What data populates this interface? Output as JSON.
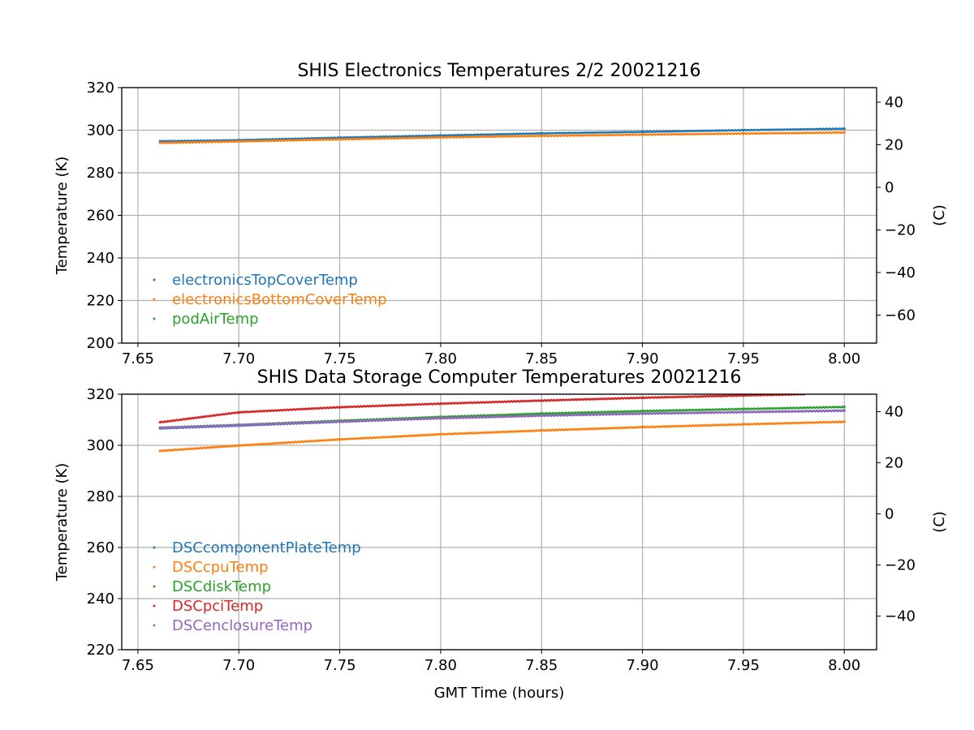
{
  "chart_data": [
    {
      "type": "scatter",
      "title": "SHIS Electronics Temperatures 2/2 20021216",
      "xlabel": "",
      "ylabel": "Temperature (K)",
      "ylabel_right": "(C)",
      "xlim": [
        7.642,
        8.016
      ],
      "ylim": [
        200,
        320
      ],
      "ylim_right_C": [
        -73.15,
        46.85
      ],
      "xticks": [
        7.65,
        7.7,
        7.75,
        7.8,
        7.85,
        7.9,
        7.95,
        8.0
      ],
      "xtick_labels": [
        "7.65",
        "7.70",
        "7.75",
        "7.80",
        "7.85",
        "7.90",
        "7.95",
        "8.00"
      ],
      "yticks": [
        200,
        220,
        240,
        260,
        280,
        300,
        320
      ],
      "ytick_labels": [
        "200",
        "220",
        "240",
        "260",
        "280",
        "300",
        "320"
      ],
      "yticks_right": [
        -60,
        -40,
        -20,
        0,
        20,
        40
      ],
      "ytick_labels_right": [
        "−60",
        "−40",
        "−20",
        "0",
        "20",
        "40"
      ],
      "grid": true,
      "legend": "lower-left",
      "series": [
        {
          "name": "electronicsTopCoverTemp",
          "color": "#1f77b4",
          "x": [
            7.661,
            7.7,
            7.75,
            7.8,
            7.85,
            7.9,
            7.95,
            8.0
          ],
          "y": [
            294.8,
            295.3,
            296.5,
            297.5,
            298.5,
            299.2,
            300.0,
            300.7
          ]
        },
        {
          "name": "electronicsBottomCoverTemp",
          "color": "#ff7f0e",
          "x": [
            7.661,
            7.7,
            7.75,
            7.8,
            7.85,
            7.9,
            7.95,
            8.0
          ],
          "y": [
            294.0,
            294.7,
            295.7,
            296.6,
            297.3,
            297.9,
            298.4,
            298.9
          ]
        },
        {
          "name": "podAirTemp",
          "color": "#2ca02c",
          "x": [],
          "y": []
        }
      ]
    },
    {
      "type": "scatter",
      "title": "SHIS Data Storage Computer Temperatures 20021216",
      "xlabel": "GMT Time (hours)",
      "ylabel": "Temperature (K)",
      "ylabel_right": "(C)",
      "xlim": [
        7.642,
        8.016
      ],
      "ylim": [
        220,
        320
      ],
      "ylim_right_C": [
        -53.15,
        46.85
      ],
      "xticks": [
        7.65,
        7.7,
        7.75,
        7.8,
        7.85,
        7.9,
        7.95,
        8.0
      ],
      "xtick_labels": [
        "7.65",
        "7.70",
        "7.75",
        "7.80",
        "7.85",
        "7.90",
        "7.95",
        "8.00"
      ],
      "yticks": [
        220,
        240,
        260,
        280,
        300,
        320
      ],
      "ytick_labels": [
        "220",
        "240",
        "260",
        "280",
        "300",
        "320"
      ],
      "yticks_right": [
        -40,
        -20,
        0,
        20,
        40
      ],
      "ytick_labels_right": [
        "−40",
        "−20",
        "0",
        "20",
        "40"
      ],
      "grid": true,
      "legend": "lower-left",
      "series": [
        {
          "name": "DSCcomponentPlateTemp",
          "color": "#1f77b4",
          "x": [
            7.661,
            7.7,
            7.75,
            7.8,
            7.85,
            7.9,
            7.95,
            8.0
          ],
          "y": [
            306.6,
            307.7,
            309.2,
            310.6,
            311.6,
            312.4,
            313.0,
            313.6
          ]
        },
        {
          "name": "DSCcpuTemp",
          "color": "#ff7f0e",
          "x": [
            7.661,
            7.7,
            7.75,
            7.8,
            7.85,
            7.9,
            7.95,
            8.0
          ],
          "y": [
            297.8,
            299.9,
            302.3,
            304.3,
            305.8,
            307.1,
            308.2,
            309.2
          ]
        },
        {
          "name": "DSCdiskTemp",
          "color": "#2ca02c",
          "x": [
            7.661,
            7.7,
            7.75,
            7.8,
            7.85,
            7.9,
            7.95,
            8.0
          ],
          "y": [
            306.9,
            308.0,
            309.6,
            311.1,
            312.4,
            313.4,
            314.2,
            315.0
          ]
        },
        {
          "name": "DSCpciTemp",
          "color": "#d62728",
          "x": [
            7.661,
            7.7,
            7.75,
            7.8,
            7.85,
            7.9,
            7.95,
            7.98
          ],
          "y": [
            309.0,
            312.9,
            314.9,
            316.3,
            317.5,
            318.6,
            319.5,
            320.0
          ]
        },
        {
          "name": "DSCenclosureTemp",
          "color": "#9467bd",
          "x": [
            7.661,
            7.7,
            7.75,
            7.8,
            7.85,
            7.9,
            7.95,
            8.0
          ],
          "y": [
            306.8,
            307.9,
            309.3,
            310.6,
            311.6,
            312.4,
            313.0,
            313.5
          ]
        }
      ]
    }
  ]
}
